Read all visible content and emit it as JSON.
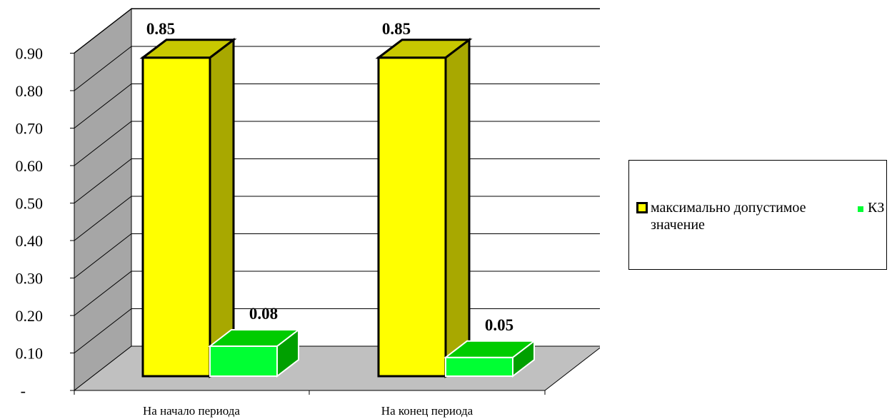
{
  "chart_data": {
    "type": "bar",
    "categories": [
      "На начало периода",
      "На конец периода"
    ],
    "series": [
      {
        "name": "максимально допустимое значение",
        "values": [
          0.85,
          0.85
        ],
        "labels": [
          "0.85",
          "0.85"
        ],
        "color": "#ffff00",
        "side_color": "#a8a800",
        "top_color": "#c8c800"
      },
      {
        "name": "КЗ",
        "values": [
          0.08,
          0.05
        ],
        "labels": [
          "0.08",
          "0.05"
        ],
        "color": "#00ff33",
        "side_color": "#00a000",
        "top_color": "#00cc00"
      }
    ],
    "yticks": [
      "-",
      "0.10",
      "0.20",
      "0.30",
      "0.40",
      "0.50",
      "0.60",
      "0.70",
      "0.80",
      "0.90"
    ],
    "ylim": [
      0,
      1.0
    ],
    "grid": true,
    "three_d": true,
    "legend_position": "right",
    "wall_color": "#a6a6a6",
    "floor_color": "#c0c0c0"
  },
  "legend": {
    "items": [
      {
        "label": "максимально допустимое значение",
        "swatch_color": "#ffff00",
        "border_color": "#000000"
      },
      {
        "label": "КЗ",
        "swatch_color": "#00ff33",
        "border_color": "#00ff33"
      }
    ]
  }
}
